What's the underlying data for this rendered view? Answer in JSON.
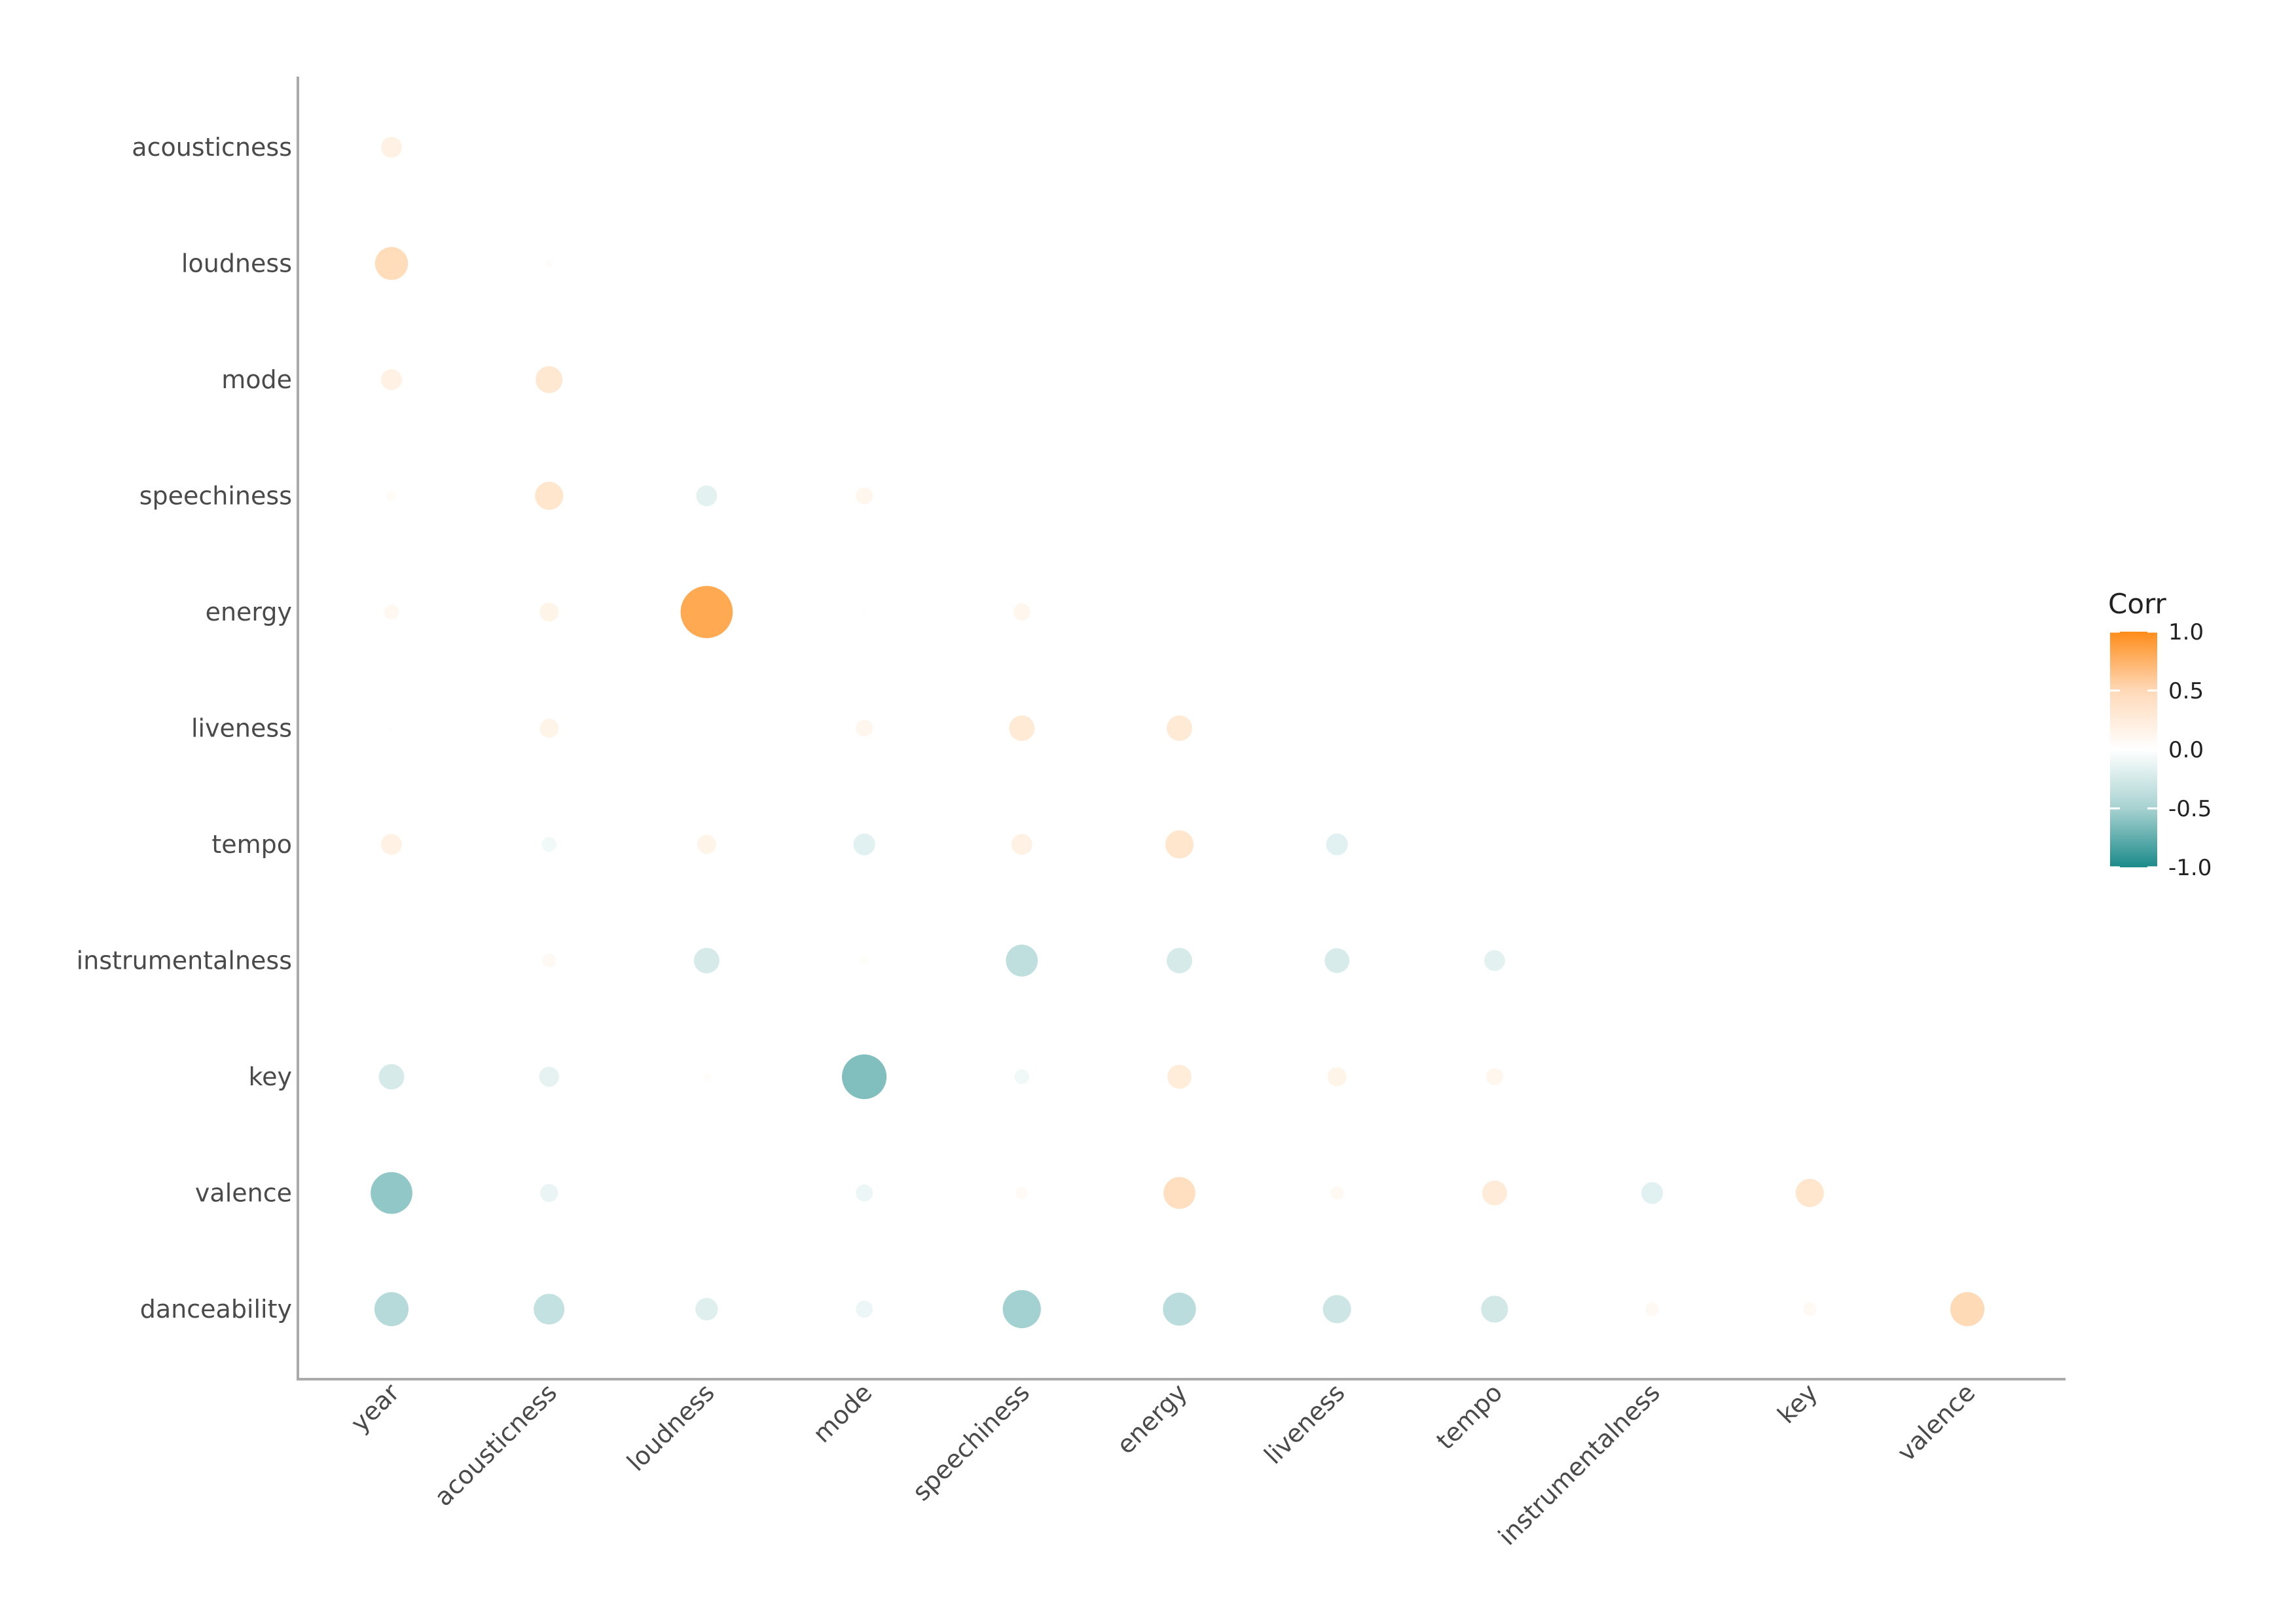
{
  "chart_data": {
    "type": "heatmap",
    "subtype": "correlogram-lower-triangle-circles",
    "x_labels": [
      "year",
      "acousticness",
      "loudness",
      "mode",
      "speechiness",
      "energy",
      "liveness",
      "tempo",
      "instrumentalness",
      "key",
      "valence"
    ],
    "y_labels": [
      "acousticness",
      "loudness",
      "mode",
      "speechiness",
      "energy",
      "liveness",
      "tempo",
      "instrumentalness",
      "key",
      "valence",
      "danceability"
    ],
    "values": [
      [
        0.12
      ],
      [
        0.3,
        0.02
      ],
      [
        0.12,
        0.2,
        0.0
      ],
      [
        0.03,
        0.22,
        -0.12,
        0.08
      ],
      [
        0.06,
        0.1,
        0.75,
        0.01,
        0.08
      ],
      [
        0.01,
        0.1,
        0.0,
        0.08,
        0.18,
        0.18
      ],
      [
        0.12,
        -0.06,
        0.1,
        -0.13,
        0.12,
        0.22,
        -0.13
      ],
      [
        null,
        0.05,
        -0.18,
        0.02,
        -0.28,
        -0.18,
        -0.17,
        -0.12
      ],
      [
        -0.18,
        -0.11,
        0.02,
        -0.55,
        -0.06,
        0.16,
        0.1,
        0.08
      ],
      [
        -0.48,
        -0.09,
        0.0,
        -0.08,
        0.04,
        0.28,
        0.05,
        0.17,
        -0.13,
        0.22
      ],
      [
        -0.32,
        -0.26,
        -0.14,
        -0.08,
        -0.4,
        -0.3,
        -0.22,
        -0.2,
        0.05,
        0.05,
        0.32
      ]
    ],
    "legend": {
      "title": "Corr",
      "ticks": [
        "1.0",
        "0.5",
        "0.0",
        "-0.5",
        "-1.0"
      ],
      "low_color": "#1a8a89",
      "mid_color": "#ffffff",
      "high_color": "#ff8c1a",
      "placement": "right"
    },
    "range": [
      -1,
      1
    ],
    "grid": false
  }
}
